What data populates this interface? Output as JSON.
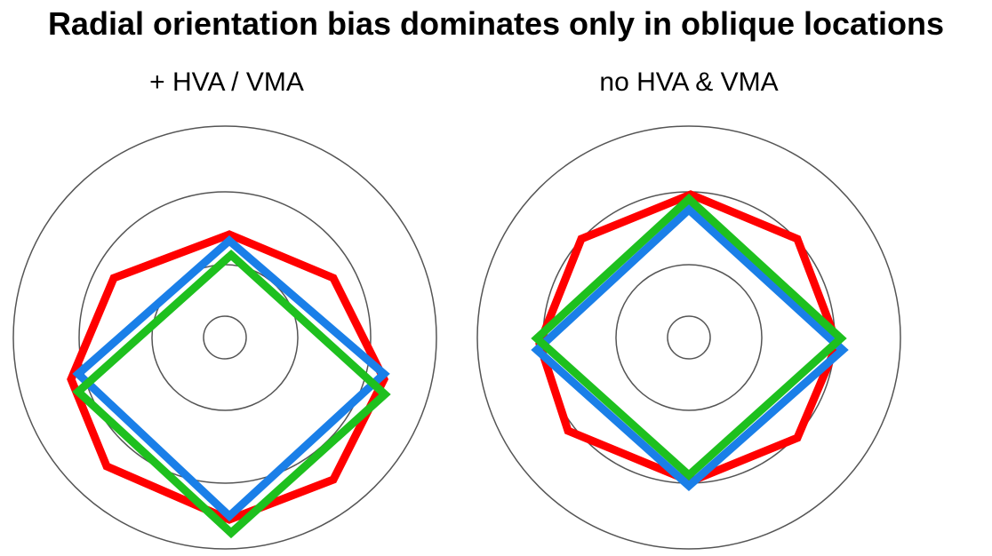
{
  "title": "Radial orientation bias dominates only in oblique locations",
  "panels": [
    {
      "label": "+ HVA / VMA",
      "shapes": [
        {
          "name": "red-octagon",
          "color": "#ff0000"
        },
        {
          "name": "blue-diamond",
          "color": "#1a7fe8"
        },
        {
          "name": "green-diamond",
          "color": "#1ec01e"
        }
      ]
    },
    {
      "label": "no HVA & VMA",
      "shapes": [
        {
          "name": "red-octagon",
          "color": "#ff0000"
        },
        {
          "name": "blue-diamond",
          "color": "#1a7fe8"
        },
        {
          "name": "green-diamond",
          "color": "#1ec01e"
        }
      ]
    }
  ],
  "colors": {
    "red": "#ff0000",
    "blue": "#1a7fe8",
    "green": "#1ec01e",
    "ring": "#555555"
  }
}
